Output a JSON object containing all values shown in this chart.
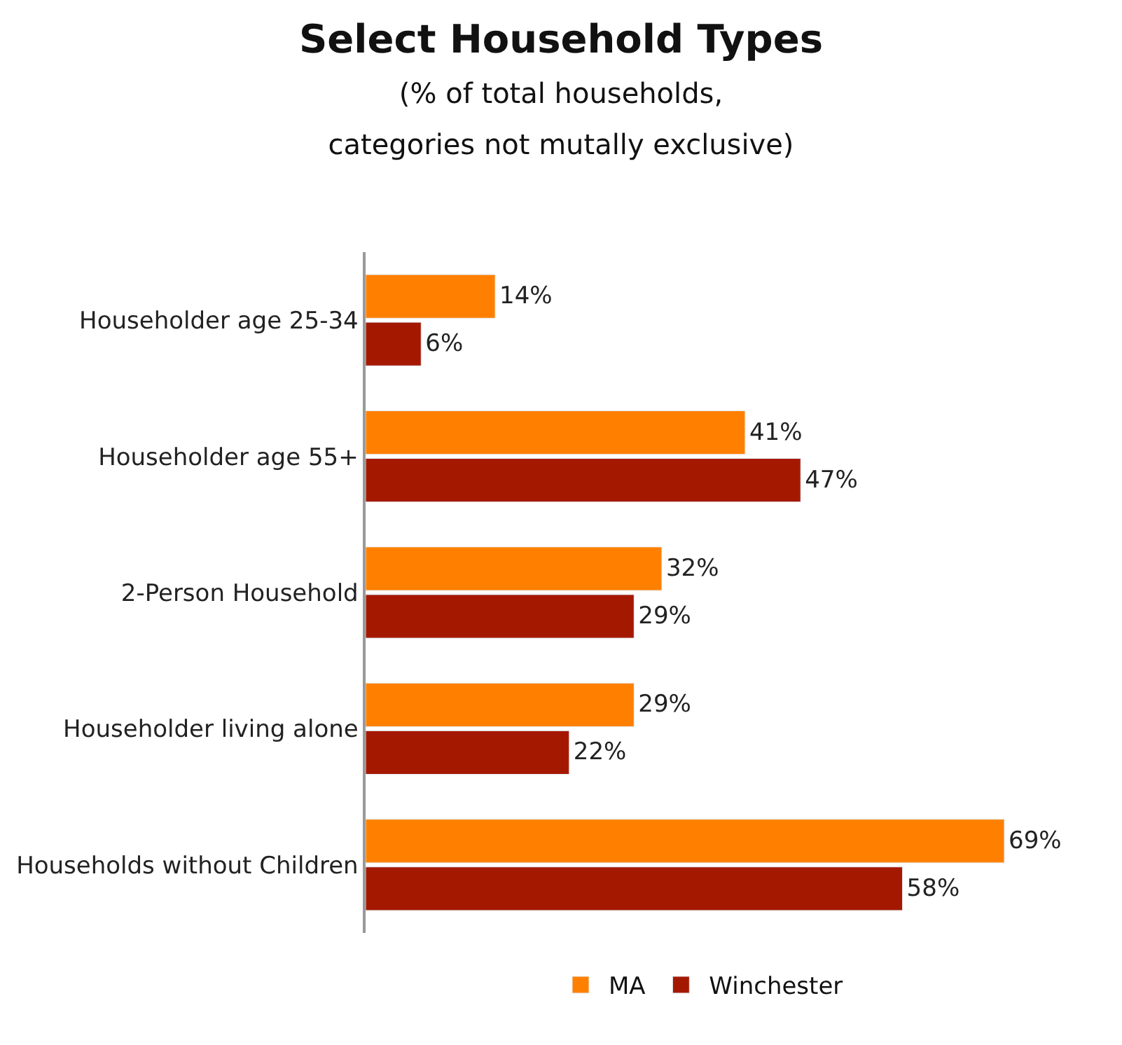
{
  "chart_data": {
    "type": "bar",
    "orientation": "horizontal",
    "title": "Select Household Types",
    "subtitle": "(% of total households,\ncategories not mutally exclusive)",
    "categories": [
      "Householder age 25-34",
      "Householder age 55+",
      "2-Person Household",
      "Householder living alone",
      "Households without Children"
    ],
    "series": [
      {
        "name": "MA",
        "color": "#ff8000",
        "values": [
          14,
          41,
          32,
          29,
          69
        ],
        "value_labels": [
          "14%",
          "41%",
          "32%",
          "29%",
          "69%"
        ]
      },
      {
        "name": "Winchester",
        "color": "#a51800",
        "values": [
          6,
          47,
          29,
          22,
          58
        ],
        "value_labels": [
          "6%",
          "47%",
          "29%",
          "22%",
          "58%"
        ]
      }
    ],
    "legend": "bottom"
  }
}
